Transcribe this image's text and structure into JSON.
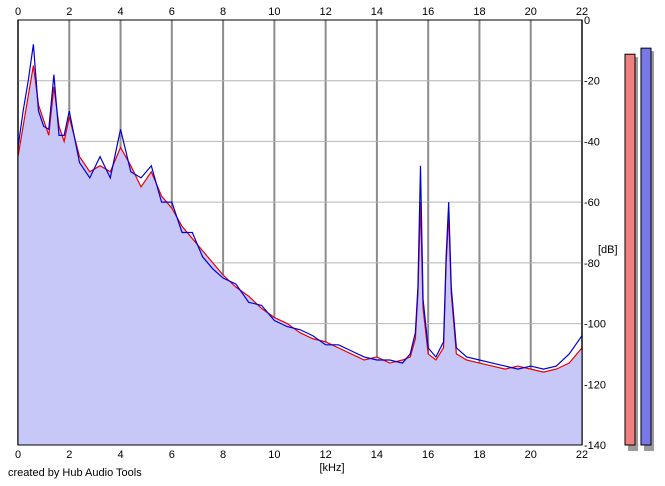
{
  "chart_data": {
    "type": "area",
    "xlabel": "[kHz]",
    "ylabel": "[dB]",
    "xlim": [
      0,
      22
    ],
    "ylim": [
      -140,
      0
    ],
    "xticks": [
      0,
      2,
      4,
      6,
      8,
      10,
      12,
      14,
      16,
      18,
      20,
      22
    ],
    "yticks": [
      0,
      -20,
      -40,
      -60,
      -80,
      -100,
      -120,
      -140
    ],
    "grid": true,
    "fill_color": "#c8c8f8",
    "series": [
      {
        "color": "#e80000",
        "x": [
          0,
          0.2,
          0.4,
          0.6,
          0.8,
          1.0,
          1.2,
          1.4,
          1.6,
          1.8,
          2.0,
          2.4,
          2.8,
          3.2,
          3.6,
          4.0,
          4.4,
          4.8,
          5.2,
          5.6,
          6.0,
          6.4,
          6.8,
          7.2,
          7.6,
          8.0,
          8.5,
          9.0,
          9.5,
          10.0,
          10.5,
          11.0,
          11.5,
          12.0,
          12.5,
          13.0,
          13.5,
          14.0,
          14.5,
          15.0,
          15.3,
          15.5,
          15.6,
          15.7,
          15.8,
          16.0,
          16.3,
          16.6,
          16.7,
          16.8,
          16.9,
          17.1,
          17.5,
          18.0,
          18.5,
          19.0,
          19.5,
          20.0,
          20.5,
          21.0,
          21.5,
          22.0
        ],
        "y": [
          -45,
          -35,
          -25,
          -15,
          -28,
          -33,
          -38,
          -22,
          -35,
          -40,
          -32,
          -45,
          -50,
          -48,
          -50,
          -42,
          -48,
          -55,
          -50,
          -58,
          -62,
          -68,
          -72,
          -76,
          -80,
          -84,
          -88,
          -91,
          -95,
          -98,
          -100,
          -103,
          -105,
          -106,
          -108,
          -110,
          -112,
          -111,
          -113,
          -112,
          -111,
          -105,
          -90,
          -60,
          -95,
          -110,
          -112,
          -108,
          -80,
          -64,
          -90,
          -110,
          -112,
          -113,
          -114,
          -115,
          -114,
          -115,
          -116,
          -115,
          -113,
          -108
        ]
      },
      {
        "color": "#0000d8",
        "x": [
          0,
          0.2,
          0.4,
          0.6,
          0.8,
          1.0,
          1.2,
          1.4,
          1.6,
          1.8,
          2.0,
          2.4,
          2.8,
          3.2,
          3.6,
          4.0,
          4.4,
          4.8,
          5.2,
          5.6,
          6.0,
          6.4,
          6.8,
          7.2,
          7.6,
          8.0,
          8.5,
          9.0,
          9.5,
          10.0,
          10.5,
          11.0,
          11.5,
          12.0,
          12.5,
          13.0,
          13.5,
          14.0,
          14.5,
          15.0,
          15.3,
          15.5,
          15.6,
          15.7,
          15.8,
          16.0,
          16.3,
          16.6,
          16.7,
          16.8,
          16.9,
          17.1,
          17.5,
          18.0,
          18.5,
          19.0,
          19.5,
          20.0,
          20.5,
          21.0,
          21.5,
          22.0
        ],
        "y": [
          -42,
          -30,
          -20,
          -8,
          -30,
          -35,
          -36,
          -18,
          -38,
          -38,
          -30,
          -47,
          -52,
          -45,
          -52,
          -36,
          -50,
          -52,
          -48,
          -60,
          -60,
          -70,
          -70,
          -78,
          -82,
          -85,
          -87,
          -93,
          -94,
          -99,
          -101,
          -102,
          -104,
          -107,
          -107,
          -109,
          -111,
          -112,
          -112,
          -113,
          -110,
          -103,
          -88,
          -48,
          -92,
          -108,
          -111,
          -106,
          -78,
          -60,
          -88,
          -108,
          -111,
          -112,
          -113,
          -114,
          -115,
          -114,
          -115,
          -114,
          -110,
          -104
        ]
      }
    ],
    "meters": [
      {
        "color": "#f08080",
        "value_db": -6
      },
      {
        "color": "#7878e8",
        "value_db": -4
      }
    ]
  },
  "credit": "created by Hub Audio Tools"
}
